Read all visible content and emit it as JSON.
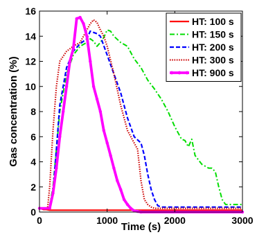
{
  "chart_data": {
    "type": "line",
    "title": "",
    "xlabel": "Time (s)",
    "ylabel": "Gas concentration (%)",
    "xlim": [
      0,
      3000
    ],
    "ylim": [
      0,
      16
    ],
    "xticks": [
      0,
      1000,
      2000,
      3000
    ],
    "yticks": [
      0,
      2,
      4,
      6,
      8,
      10,
      12,
      14,
      16
    ],
    "grid": false,
    "legend_position": "top-right",
    "series": [
      {
        "name": "HT: 100 s",
        "color": "#ff0000",
        "style": "solid",
        "x": [
          0,
          30,
          60,
          100,
          150,
          200,
          3000
        ],
        "y": [
          0.3,
          0.25,
          0.2,
          0.2,
          0.15,
          0.15,
          0.15
        ]
      },
      {
        "name": "HT: 150 s",
        "color": "#00dd00",
        "style": "dashdot",
        "x": [
          0,
          100,
          150,
          200,
          250,
          300,
          400,
          500,
          600,
          700,
          750,
          800,
          850,
          900,
          950,
          1000,
          1050,
          1100,
          1200,
          1300,
          1400,
          1500,
          1600,
          1700,
          1800,
          1900,
          2000,
          2100,
          2150,
          2200,
          2250,
          2300,
          2400,
          2500,
          2550,
          2600,
          2650,
          2700,
          2750,
          3000
        ],
        "y": [
          0.3,
          0.3,
          0.5,
          2.0,
          5.0,
          8.0,
          11.0,
          12.5,
          13.2,
          13.5,
          13.8,
          13.6,
          13.2,
          13.5,
          13.9,
          14.5,
          14.4,
          14.0,
          13.5,
          13.2,
          12.2,
          11.5,
          10.5,
          9.8,
          9.0,
          8.0,
          6.8,
          5.8,
          5.7,
          5.2,
          5.8,
          4.5,
          3.8,
          3.5,
          3.5,
          3.2,
          2.0,
          1.0,
          0.6,
          0.6
        ]
      },
      {
        "name": "HT: 200 s",
        "color": "#0000ff",
        "style": "dashed",
        "x": [
          0,
          150,
          200,
          250,
          300,
          400,
          500,
          600,
          700,
          750,
          800,
          850,
          900,
          1000,
          1100,
          1200,
          1300,
          1400,
          1500,
          1550,
          1600,
          1650,
          1700,
          1750,
          1800,
          3000
        ],
        "y": [
          0.3,
          0.3,
          1.5,
          5.0,
          8.5,
          11.5,
          12.8,
          13.4,
          13.8,
          14.4,
          14.3,
          14.2,
          14.0,
          12.5,
          11.0,
          9.5,
          7.5,
          6.0,
          5.5,
          4.5,
          3.0,
          1.8,
          1.0,
          0.5,
          0.4,
          0.4
        ]
      },
      {
        "name": "HT: 300 s",
        "color": "#cc0000",
        "style": "dotted",
        "x": [
          0,
          120,
          150,
          200,
          250,
          300,
          400,
          500,
          600,
          700,
          750,
          800,
          850,
          900,
          950,
          1000,
          1100,
          1200,
          1300,
          1400,
          1450,
          1500,
          1550,
          1600,
          1650,
          1700,
          3000
        ],
        "y": [
          0.3,
          0.3,
          2.0,
          6.5,
          10.0,
          12.0,
          12.8,
          13.2,
          13.5,
          14.5,
          15.0,
          15.3,
          15.1,
          14.5,
          14.0,
          13.2,
          11.0,
          8.5,
          6.5,
          5.5,
          5.0,
          2.5,
          1.0,
          0.6,
          0.4,
          0.3,
          0.3
        ]
      },
      {
        "name": "HT: 900 s",
        "color": "#ff00ff",
        "style": "solid-thick",
        "x": [
          0,
          150,
          200,
          250,
          300,
          350,
          400,
          450,
          500,
          550,
          600,
          650,
          700,
          750,
          800,
          850,
          900,
          950,
          1000,
          1050,
          1100,
          1150,
          1200,
          1250,
          1300,
          1350,
          1400,
          1450,
          1500,
          3000
        ],
        "y": [
          0.3,
          0.3,
          1.5,
          3.5,
          6.0,
          8.0,
          10.0,
          12.0,
          13.0,
          15.4,
          15.5,
          15.0,
          14.0,
          12.0,
          10.0,
          9.0,
          8.0,
          6.5,
          5.5,
          4.5,
          3.5,
          2.5,
          1.8,
          1.0,
          0.6,
          0.3,
          0.1,
          0.05,
          0.0,
          0.0
        ]
      }
    ]
  }
}
